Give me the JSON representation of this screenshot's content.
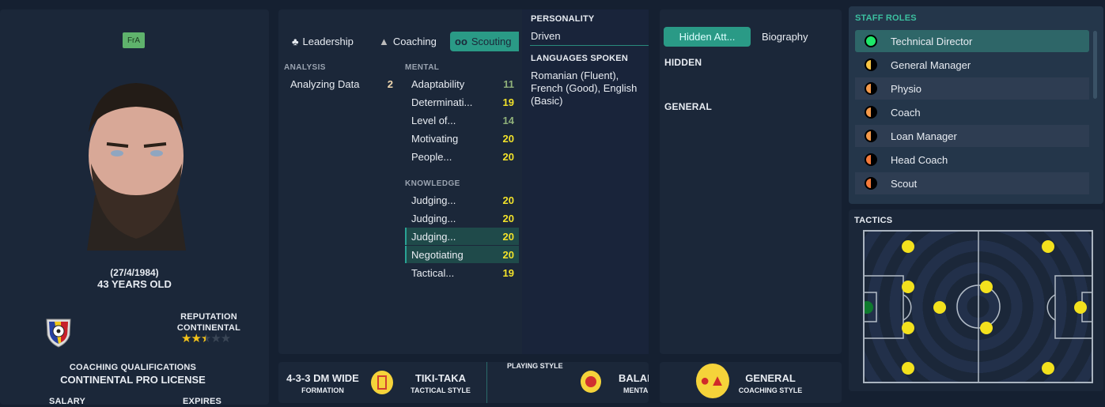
{
  "profile": {
    "badge": "FrA",
    "dob": "(27/4/1984)",
    "age": "43 YEARS OLD",
    "reputation_label": "REPUTATION",
    "reputation_value": "CONTINENTAL",
    "reputation_stars": 2.5,
    "reputation_max": 5,
    "qualifications_label": "COACHING QUALIFICATIONS",
    "qualifications_value": "CONTINENTAL PRO LICENSE",
    "salary_label": "SALARY",
    "expires_label": "EXPIRES"
  },
  "tabs": [
    {
      "label": "Leadership",
      "icon": "leadership-icon"
    },
    {
      "label": "Coaching",
      "icon": "coaching-icon"
    },
    {
      "label": "Scouting",
      "icon": "binoculars-icon",
      "active": true
    }
  ],
  "analysis": {
    "title": "ANALYSIS",
    "items": [
      {
        "name": "Analyzing Data",
        "value": "2"
      }
    ]
  },
  "mental": {
    "title": "MENTAL",
    "items": [
      {
        "name": "Adaptability",
        "value": "11"
      },
      {
        "name": "Determinati...",
        "value": "19"
      },
      {
        "name": "Level of...",
        "value": "14"
      },
      {
        "name": "Motivating",
        "value": "20"
      },
      {
        "name": "People...",
        "value": "20"
      }
    ]
  },
  "knowledge": {
    "title": "KNOWLEDGE",
    "items": [
      {
        "name": "Judging...",
        "value": "20"
      },
      {
        "name": "Judging...",
        "value": "20"
      },
      {
        "name": "Judging...",
        "value": "20"
      },
      {
        "name": "Negotiating",
        "value": "20"
      },
      {
        "name": "Tactical...",
        "value": "19"
      }
    ]
  },
  "personality": {
    "title": "PERSONALITY",
    "value": "Driven",
    "languages_title": "LANGUAGES SPOKEN",
    "languages": "Romanian (Fluent), French (Good), English (Basic)"
  },
  "attributes_panel": {
    "tab_hidden": "Hidden Att...",
    "tab_biography": "Biography",
    "hidden": "HIDDEN",
    "general": "GENERAL"
  },
  "styles": {
    "formation": "4-3-3 DM WIDE",
    "formation_label": "FORMATION",
    "tactical": "TIKI-TAKA",
    "tactical_label": "TACTICAL STYLE",
    "playing_style_label": "PLAYING STYLE",
    "mentality": "BALAN",
    "mentality_label": "MENTA",
    "coaching": "GENERAL",
    "coaching_label": "COACHING STYLE"
  },
  "staff_roles": {
    "title": "STAFF ROLES",
    "items": [
      {
        "label": "Technical Director",
        "color": "#1ee86a",
        "full": true
      },
      {
        "label": "General Manager",
        "color": "#f7c544"
      },
      {
        "label": "Physio",
        "color": "#f59a4a"
      },
      {
        "label": "Coach",
        "color": "#f59a4a"
      },
      {
        "label": "Loan Manager",
        "color": "#f59a4a"
      },
      {
        "label": "Head Coach",
        "color": "#f57a3a"
      },
      {
        "label": "Scout",
        "color": "#f57a3a"
      }
    ]
  },
  "tactics": {
    "title": "TACTICS"
  },
  "colors": {
    "accent": "#2aa395",
    "highlight_value": "#f2e22a",
    "player": "#f3e11d",
    "goalkeeper": "#0e7a2e"
  }
}
